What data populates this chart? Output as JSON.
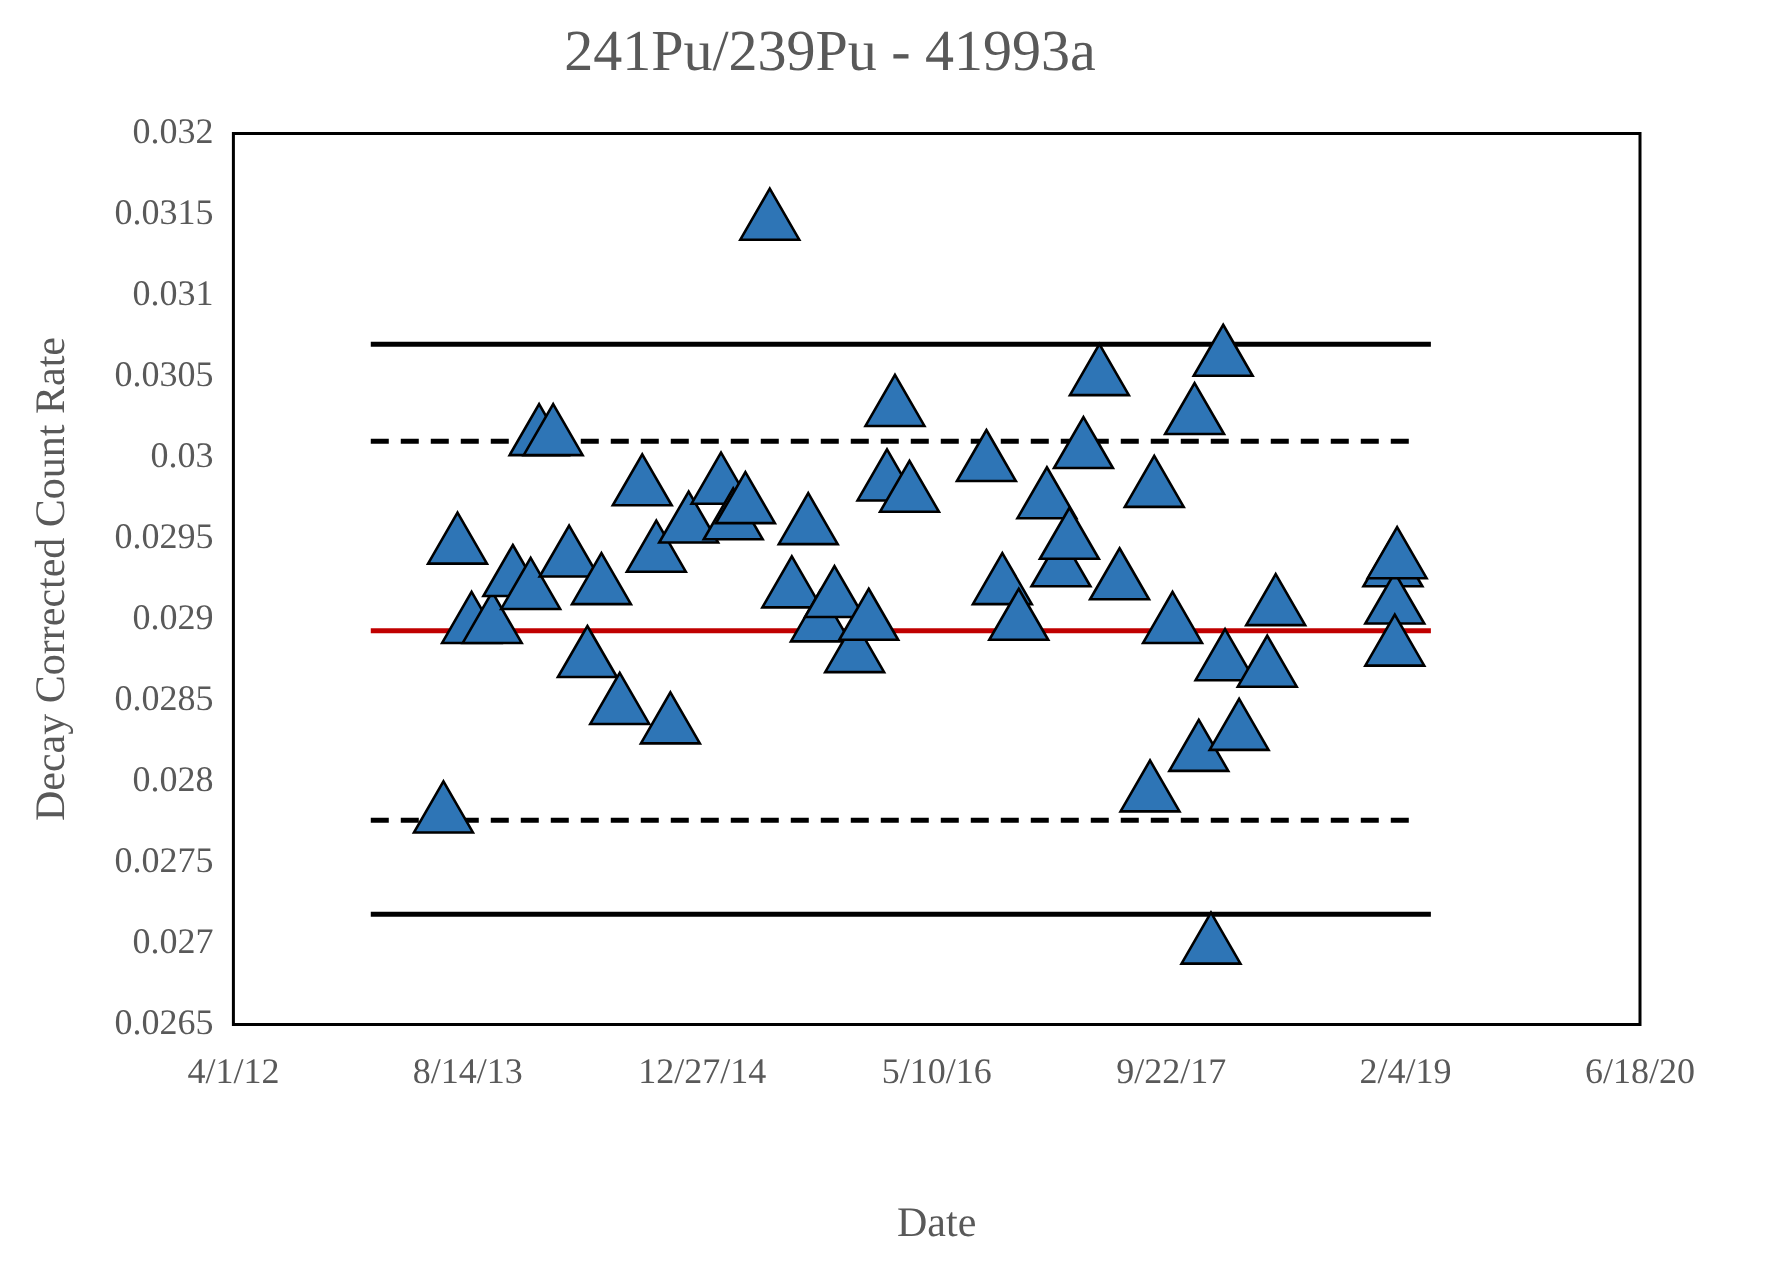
{
  "chart_data": {
    "type": "scatter",
    "title": "241Pu/239Pu - 41993a",
    "xlabel": "Date",
    "ylabel": "Decay Corrected Count Rate",
    "xlim": [
      "2012-04-01",
      "2020-06-18"
    ],
    "xticks": [
      {
        "value": "2012-04-01",
        "label": "4/1/12"
      },
      {
        "value": "2013-08-14",
        "label": "8/14/13"
      },
      {
        "value": "2014-12-27",
        "label": "12/27/14"
      },
      {
        "value": "2016-05-10",
        "label": "5/10/16"
      },
      {
        "value": "2017-09-22",
        "label": "9/22/17"
      },
      {
        "value": "2019-02-04",
        "label": "2/4/19"
      },
      {
        "value": "2020-06-18",
        "label": "6/18/20"
      }
    ],
    "ylim": [
      0.0265,
      0.032
    ],
    "yticks": [
      0.0265,
      0.027,
      0.0275,
      0.028,
      0.0285,
      0.029,
      0.0295,
      0.03,
      0.0305,
      0.031,
      0.0315,
      0.032
    ],
    "grid": false,
    "legend": false,
    "marker": "triangle",
    "series": [
      {
        "type": "line",
        "color": "#000000",
        "line_style": "solid",
        "marker": "none",
        "x": [
          "2013-01-19",
          "2019-03-30"
        ],
        "values": [
          0.0307,
          0.0307
        ]
      },
      {
        "type": "line",
        "color": "#000000",
        "line_style": "dashed",
        "marker": "none",
        "x": [
          "2013-01-19",
          "2019-02-16"
        ],
        "values": [
          0.0301,
          0.0301
        ]
      },
      {
        "type": "line",
        "color": "#c00000",
        "line_style": "solid",
        "marker": "none",
        "x": [
          "2013-01-19",
          "2019-03-30"
        ],
        "values": [
          0.02893,
          0.02893
        ]
      },
      {
        "type": "line",
        "color": "#000000",
        "line_style": "dashed",
        "marker": "none",
        "x": [
          "2013-01-19",
          "2019-02-16"
        ],
        "values": [
          0.02776,
          0.02776
        ]
      },
      {
        "type": "line",
        "color": "#000000",
        "line_style": "solid",
        "marker": "none",
        "x": [
          "2013-01-19",
          "2019-03-30"
        ],
        "values": [
          0.02718,
          0.02718
        ]
      },
      {
        "color": "#2e75b6",
        "x": [
          "2013-06-23",
          "2013-07-23",
          "2013-08-22",
          "2013-10-05",
          "2013-11-18",
          "2013-12-26",
          "2014-01-13",
          "2014-02-12",
          "2014-03-18",
          "2014-04-26",
          "2014-05-26",
          "2014-07-04",
          "2014-08-21",
          "2014-09-20",
          "2014-10-20",
          "2014-11-28",
          "2015-02-05",
          "2015-03-03",
          "2015-03-29",
          "2015-05-20",
          "2015-07-06",
          "2015-08-10",
          "2015-09-05",
          "2015-10-05",
          "2015-11-17",
          "2015-12-17",
          "2016-01-25",
          "2016-02-11",
          "2016-03-13",
          "2016-08-24",
          "2016-09-27",
          "2016-11-01",
          "2016-12-31",
          "2017-01-30",
          "2017-02-17",
          "2017-03-19",
          "2017-04-22",
          "2017-06-04",
          "2017-08-08",
          "2017-08-17",
          "2017-09-25",
          "2017-11-11",
          "2017-11-20",
          "2017-12-16",
          "2018-01-11",
          "2018-01-15",
          "2018-02-14",
          "2018-04-15",
          "2018-05-03",
          "2019-01-08",
          "2019-01-12",
          "2019-01-17",
          "2019-01-12"
        ],
        "values": [
          0.02779,
          0.02945,
          0.02896,
          0.02896,
          0.02925,
          0.02917,
          0.03012,
          0.03012,
          0.02937,
          0.02875,
          0.0292,
          0.02846,
          0.02981,
          0.0294,
          0.02834,
          0.02958,
          0.02982,
          0.0296,
          0.0297,
          0.03145,
          0.02918,
          0.02957,
          0.02897,
          0.02912,
          0.02878,
          0.02898,
          0.02984,
          0.0303,
          0.02977,
          0.02996,
          0.0292,
          0.02898,
          0.02973,
          0.02931,
          0.02948,
          0.03004,
          0.03049,
          0.02923,
          0.02792,
          0.0298,
          0.02896,
          0.03025,
          0.02817,
          0.02698,
          0.03061,
          0.02873,
          0.0283,
          0.02869,
          0.02907,
          0.02931,
          0.02908,
          0.02936,
          0.02882
        ]
      }
    ]
  }
}
